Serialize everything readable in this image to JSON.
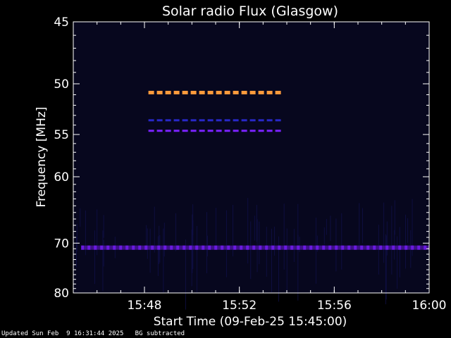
{
  "chart_data": {
    "type": "heatmap",
    "title": "Solar radio Flux (Glasgow)",
    "xlabel": "Start Time (09-Feb-25 15:45:00)",
    "ylabel": "Frequency [MHz]",
    "xlim": [
      "15:45:00",
      "16:00:00"
    ],
    "ylim": [
      45,
      80
    ],
    "y_scale": "reciprocal",
    "grid": false,
    "x_ticks": [
      "15:48",
      "15:52",
      "15:56",
      "16:00"
    ],
    "y_ticks": [
      45,
      50,
      55,
      60,
      70,
      80
    ],
    "bands": [
      {
        "start": "15:48:10",
        "end": "15:54:00",
        "freq_mhz": 50.8,
        "level": "high"
      },
      {
        "start": "15:48:10",
        "end": "15:54:00",
        "freq_mhz": 53.5,
        "level": "low"
      },
      {
        "start": "15:48:10",
        "end": "15:54:00",
        "freq_mhz": 54.6,
        "level": "medium"
      },
      {
        "start": "15:45:20",
        "end": "16:00:00",
        "freq_mhz": 70.8,
        "level": "interference"
      }
    ],
    "background": "subtracted"
  },
  "colors": {
    "background": "#000000",
    "plot_background": "#07071e",
    "axes": "#ffffff",
    "high": "#ff9a3c",
    "medium": "#7a22ff",
    "low": "#2828c8",
    "interference": "#6a1ae0"
  },
  "footer": {
    "updated": "Updated Sun Feb  9 16:31:44 2025",
    "note": "BG subtracted"
  }
}
